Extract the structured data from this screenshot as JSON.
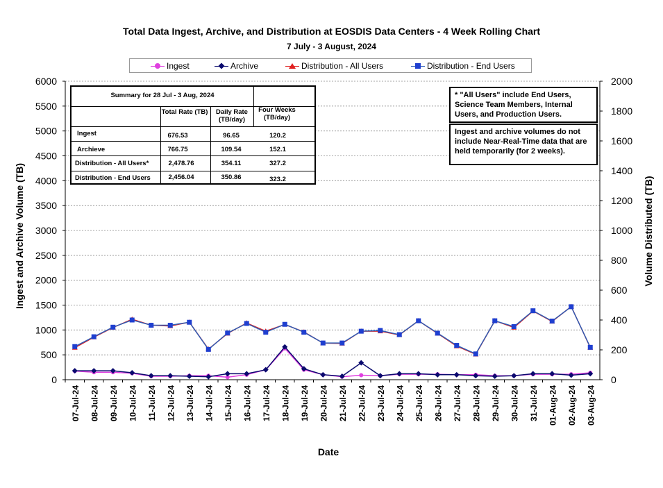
{
  "chart_data": {
    "type": "line",
    "title": "Total Data Ingest, Archive, and  Distribution at EOSDIS Data Centers - 4 Week Rolling Chart",
    "subtitle": "7  July   -  3  August,  2024",
    "xlabel": "Date",
    "ylabel_left": "Ingest and Archive Volume (TB)",
    "ylabel_right": "Volume Distributed (TB)",
    "ylim_left": [
      0,
      6000
    ],
    "ylim_right": [
      0,
      2000
    ],
    "yticks_left": [
      "0",
      "500",
      "1000",
      "1500",
      "2000",
      "2500",
      "3000",
      "3500",
      "4000",
      "4500",
      "5000",
      "5500",
      "6000"
    ],
    "yticks_right": [
      "0",
      "200",
      "400",
      "600",
      "800",
      "1000",
      "1200",
      "1400",
      "1600",
      "1800",
      "2000"
    ],
    "categories": [
      "07-Jul-24",
      "08-Jul-24",
      "09-Jul-24",
      "10-Jul-24",
      "11-Jul-24",
      "12-Jul-24",
      "13-Jul-24",
      "14-Jul-24",
      "15-Jul-24",
      "16-Jul-24",
      "17-Jul-24",
      "18-Jul-24",
      "19-Jul-24",
      "20-Jul-24",
      "21-Jul-24",
      "22-Jul-24",
      "23-Jul-24",
      "24-Jul-24",
      "25-Jul-24",
      "26-Jul-24",
      "27-Jul-24",
      "28-Jul-24",
      "29-Jul-24",
      "30-Jul-24",
      "31-Jul-24",
      "01-Aug-24",
      "02-Aug-24",
      "03-Aug-24"
    ],
    "series": [
      {
        "name": "Ingest",
        "axis": "left",
        "color": "#e040e0",
        "marker": "circle",
        "values": [
          175,
          150,
          150,
          130,
          70,
          70,
          80,
          80,
          50,
          100,
          200,
          630,
          200,
          100,
          60,
          90,
          80,
          110,
          110,
          110,
          100,
          100,
          80,
          80,
          110,
          110,
          110,
          140
        ]
      },
      {
        "name": "Archive",
        "axis": "left",
        "color": "#0a0a6e",
        "marker": "diamond",
        "values": [
          180,
          180,
          180,
          140,
          80,
          80,
          70,
          60,
          120,
          120,
          200,
          660,
          220,
          100,
          70,
          340,
          80,
          120,
          120,
          100,
          100,
          80,
          70,
          80,
          120,
          120,
          90,
          120
        ]
      },
      {
        "name": "Distribution - All Users",
        "axis": "right",
        "color": "#e02020",
        "marker": "triangle",
        "values": [
          215,
          285,
          350,
          405,
          365,
          360,
          385,
          205,
          310,
          380,
          325,
          370,
          320,
          245,
          243,
          325,
          325,
          300,
          395,
          310,
          225,
          170,
          395,
          350,
          460,
          390,
          490,
          215
        ]
      },
      {
        "name": "Distribution - End Users",
        "axis": "right",
        "color": "#2f5db5",
        "marker": "square",
        "values": [
          222,
          288,
          352,
          400,
          365,
          365,
          385,
          203,
          313,
          377,
          318,
          371,
          318,
          246,
          246,
          325,
          330,
          302,
          395,
          312,
          230,
          173,
          395,
          356,
          462,
          393,
          489,
          217
        ]
      }
    ]
  },
  "summary": {
    "title": "Summary  for  28  Jul   -  3  Aug,  2024",
    "col1_header": "Total Rate (TB)",
    "col2_header": "Daily Rate (TB/day)",
    "col3_header": "Four Weeks (TB/day)",
    "rows": [
      {
        "label": "Ingest",
        "total": "676.53",
        "daily": "96.65",
        "four": "120.2"
      },
      {
        "label": "Archieve",
        "total": "766.75",
        "daily": "109.54",
        "four": "152.1"
      },
      {
        "label": "Distribution - All Users*",
        "total": "2,478.76",
        "daily": "354.11",
        "four": "327.2"
      },
      {
        "label": "Distribution - End Users",
        "total": "2,456.04",
        "daily": "350.86",
        "four": "323.2"
      }
    ]
  },
  "notes": {
    "note1": "* \"All Users\" include End Users, Science Team Members,  Internal Users, and Production Users.",
    "note2": "Ingest and archive volumes do not include Near-Real-Time data that are held temporarily (for 2 weeks)."
  }
}
